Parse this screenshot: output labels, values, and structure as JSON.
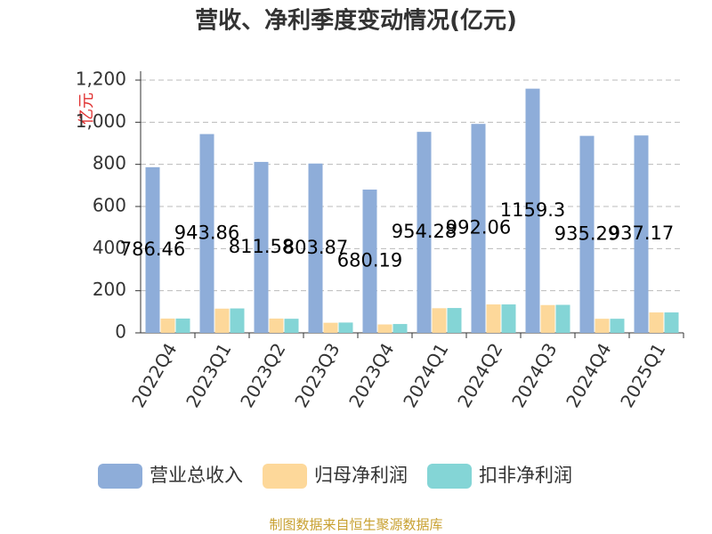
{
  "chart_data": {
    "type": "bar",
    "title": "营收、净利季度变动情况(亿元)",
    "y_label": "亿元",
    "source": "制图数据来自恒生聚源数据库",
    "categories": [
      "2022Q4",
      "2023Q1",
      "2023Q2",
      "2023Q3",
      "2023Q4",
      "2024Q1",
      "2024Q2",
      "2024Q3",
      "2024Q4",
      "2025Q1"
    ],
    "series": [
      {
        "name": "营业总收入",
        "color": "#8eadd9",
        "values": [
          786.46,
          943.86,
          811.58,
          803.87,
          680.19,
          954.28,
          992.06,
          1159.3,
          935.29,
          937.17
        ]
      },
      {
        "name": "归母净利润",
        "color": "#fdd89a",
        "values": [
          68,
          115,
          68,
          48,
          40,
          117,
          135,
          132,
          67,
          97
        ]
      },
      {
        "name": "扣非净利润",
        "color": "#84d5d6",
        "values": [
          68,
          116,
          67,
          49,
          42,
          118,
          135,
          133,
          67,
          97
        ]
      }
    ],
    "ylim": [
      0,
      1200
    ],
    "yticks": [
      0,
      200,
      400,
      600,
      800,
      {
        "value": 1000,
        "label": "1,000"
      },
      {
        "value": 1200,
        "label": "1,200"
      }
    ],
    "grid": true
  }
}
